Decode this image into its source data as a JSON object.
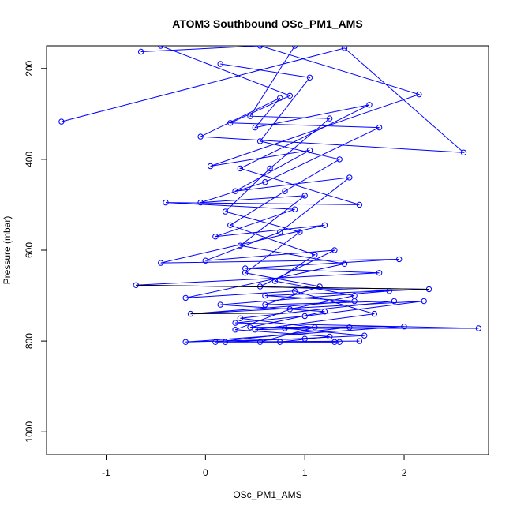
{
  "chart_data": {
    "type": "line",
    "title": "ATOM3 Southbound OSc_PM1_AMS",
    "xlabel": "OSc_PM1_AMS",
    "ylabel": "Pressure (mbar)",
    "xlim": [
      -1.6,
      2.85
    ],
    "ylim": [
      1050,
      150
    ],
    "y_reversed": true,
    "x_ticks": [
      "-1",
      "0",
      "1",
      "2"
    ],
    "x_tick_values": [
      -1,
      0,
      1,
      2
    ],
    "y_ticks": [
      "200",
      "400",
      "600",
      "800",
      "1000"
    ],
    "y_tick_values": [
      200,
      400,
      600,
      800,
      1000
    ],
    "grid": false,
    "legend": "none",
    "colors": {
      "series": "#0000ff",
      "highlight": "#000000"
    },
    "series": [
      {
        "values": [
          {
            "x": -1.45,
            "y": 317
          },
          {
            "x": 1.4,
            "y": 155
          },
          {
            "x": 2.6,
            "y": 385
          },
          {
            "x": -0.05,
            "y": 350
          },
          {
            "x": 0.75,
            "y": 265
          },
          {
            "x": 0.5,
            "y": 330
          },
          {
            "x": 1.65,
            "y": 280
          },
          {
            "x": 0.35,
            "y": 420
          },
          {
            "x": 1.55,
            "y": 500
          },
          {
            "x": -0.4,
            "y": 495
          },
          {
            "x": 0.9,
            "y": 510
          },
          {
            "x": 0.1,
            "y": 570
          },
          {
            "x": 1.2,
            "y": 545
          },
          {
            "x": -0.45,
            "y": 628
          },
          {
            "x": 1.95,
            "y": 620
          },
          {
            "x": 0.4,
            "y": 640
          },
          {
            "x": 1.75,
            "y": 650
          },
          {
            "x": -0.7,
            "y": 677
          },
          {
            "x": 2.25,
            "y": 686
          },
          {
            "x": 0.6,
            "y": 700
          },
          {
            "x": 1.5,
            "y": 712
          },
          {
            "x": -0.15,
            "y": 740
          },
          {
            "x": 2.2,
            "y": 712
          },
          {
            "x": 1.0,
            "y": 745
          },
          {
            "x": 0.3,
            "y": 760
          },
          {
            "x": 2.75,
            "y": 772
          },
          {
            "x": 0.8,
            "y": 772
          },
          {
            "x": 1.6,
            "y": 788
          },
          {
            "x": 0.2,
            "y": 802
          },
          {
            "x": 1.3,
            "y": 802
          }
        ]
      },
      {
        "values": [
          {
            "x": -0.65,
            "y": 163
          },
          {
            "x": 0.55,
            "y": 150
          },
          {
            "x": 2.15,
            "y": 257
          },
          {
            "x": 0.05,
            "y": 415
          },
          {
            "x": 1.05,
            "y": 380
          },
          {
            "x": 0.3,
            "y": 470
          },
          {
            "x": 1.45,
            "y": 440
          },
          {
            "x": 0.75,
            "y": 560
          },
          {
            "x": 0.0,
            "y": 623
          },
          {
            "x": 1.3,
            "y": 600
          },
          {
            "x": 0.55,
            "y": 680
          },
          {
            "x": 1.85,
            "y": 690
          },
          {
            "x": 0.15,
            "y": 720
          },
          {
            "x": 1.2,
            "y": 735
          },
          {
            "x": 0.45,
            "y": 770
          },
          {
            "x": 2.0,
            "y": 768
          },
          {
            "x": -0.2,
            "y": 802
          },
          {
            "x": 1.0,
            "y": 795
          }
        ]
      },
      {
        "values": [
          {
            "x": -0.45,
            "y": 150
          },
          {
            "x": 0.85,
            "y": 260
          },
          {
            "x": 0.25,
            "y": 320
          },
          {
            "x": 1.75,
            "y": 330
          },
          {
            "x": 0.6,
            "y": 450
          },
          {
            "x": -0.05,
            "y": 495
          },
          {
            "x": 1.0,
            "y": 480
          },
          {
            "x": 0.35,
            "y": 590
          },
          {
            "x": 1.4,
            "y": 630
          },
          {
            "x": -0.2,
            "y": 705
          },
          {
            "x": 0.9,
            "y": 690
          },
          {
            "x": 1.7,
            "y": 740
          },
          {
            "x": 0.5,
            "y": 775
          },
          {
            "x": 1.45,
            "y": 770
          },
          {
            "x": 0.1,
            "y": 802
          },
          {
            "x": 1.55,
            "y": 800
          }
        ]
      },
      {
        "values": [
          {
            "x": 0.9,
            "y": 150
          },
          {
            "x": 0.45,
            "y": 305
          },
          {
            "x": 1.25,
            "y": 310
          },
          {
            "x": 0.65,
            "y": 420
          },
          {
            "x": 0.2,
            "y": 515
          },
          {
            "x": 0.95,
            "y": 560
          },
          {
            "x": 0.4,
            "y": 650
          },
          {
            "x": 1.15,
            "y": 680
          },
          {
            "x": 0.6,
            "y": 720
          },
          {
            "x": 1.9,
            "y": 712
          },
          {
            "x": 0.35,
            "y": 750
          },
          {
            "x": 1.1,
            "y": 770
          },
          {
            "x": 0.55,
            "y": 802
          },
          {
            "x": 1.35,
            "y": 802
          }
        ]
      },
      {
        "values": [
          {
            "x": 0.15,
            "y": 190
          },
          {
            "x": 1.05,
            "y": 220
          },
          {
            "x": 0.55,
            "y": 360
          },
          {
            "x": 1.35,
            "y": 400
          },
          {
            "x": 0.8,
            "y": 470
          },
          {
            "x": 0.25,
            "y": 545
          },
          {
            "x": 1.1,
            "y": 610
          },
          {
            "x": 0.7,
            "y": 668
          },
          {
            "x": 1.5,
            "y": 700
          },
          {
            "x": 0.85,
            "y": 730
          },
          {
            "x": 0.3,
            "y": 775
          },
          {
            "x": 1.25,
            "y": 790
          },
          {
            "x": 0.75,
            "y": 802
          }
        ]
      }
    ],
    "highlight_segments": [
      {
        "x": [
          -0.7,
          2.25
        ],
        "y": [
          677,
          686
        ]
      },
      {
        "x": [
          -0.15,
          1.05
        ],
        "y": [
          740,
          738
        ]
      },
      {
        "x": [
          0.6,
          1.85
        ],
        "y": [
          712,
          712
        ]
      }
    ]
  }
}
